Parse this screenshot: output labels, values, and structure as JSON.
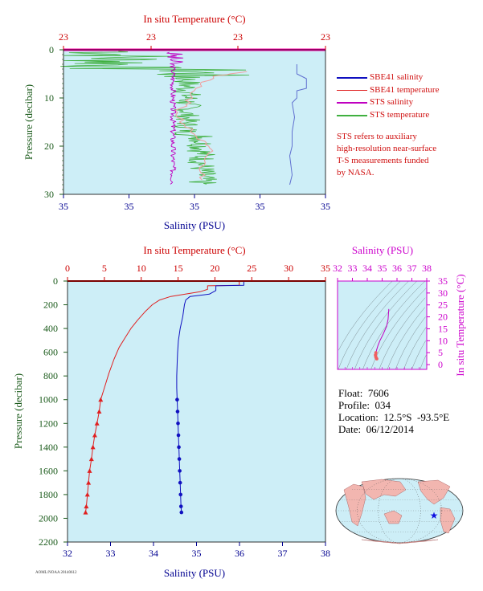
{
  "colors": {
    "plot_bg": "#cdeef7",
    "sbe_salinity": "#1010c0",
    "sbe_temperature": "#e02020",
    "sts_salinity": "#c000c0",
    "sts_temperature": "#40b040",
    "sts_temp_light": "#f0a0a0",
    "sbe_sal_light": "#6070d0",
    "red_axis": "#cc0000",
    "blue_axis": "#000090",
    "green_axis": "#1a5a1a",
    "magenta_axis": "#cc00cc"
  },
  "top_chart": {
    "temp_axis_title": "In situ Temperature (°C)",
    "temp_ticks": [
      "23",
      "23",
      "23",
      "23"
    ],
    "pressure_axis_title": "Pressure (decibar)",
    "pressure_ticks": [
      "0",
      "10",
      "20",
      "30"
    ],
    "sal_axis_title": "Salinity (PSU)",
    "sal_ticks": [
      "35",
      "35",
      "35",
      "35",
      "35"
    ]
  },
  "legend": [
    {
      "label": "SBE41 salinity",
      "color": "#1010c0"
    },
    {
      "label": "SBE41 temperature",
      "color": "#e02020"
    },
    {
      "label": "STS salinity",
      "color": "#c000c0"
    },
    {
      "label": "STS temperature",
      "color": "#40b040"
    }
  ],
  "note": {
    "lines": [
      "STS refers to auxiliary",
      "high-resolution near-surface",
      "T-S measurements funded",
      "by NASA."
    ]
  },
  "main_chart": {
    "temp_axis_title": "In situ Temperature (°C)",
    "temp_ticks": [
      "0",
      "5",
      "10",
      "15",
      "20",
      "25",
      "30",
      "35"
    ],
    "pressure_axis_title": "Pressure (decibar)",
    "pressure_ticks": [
      "0",
      "200",
      "400",
      "600",
      "800",
      "1000",
      "1200",
      "1400",
      "1600",
      "1800",
      "2000",
      "2200"
    ],
    "sal_axis_title": "Salinity (PSU)",
    "sal_ticks": [
      "32",
      "33",
      "34",
      "35",
      "36",
      "37",
      "38"
    ]
  },
  "ts_chart": {
    "sal_axis_title": "Salinity (PSU)",
    "sal_ticks": [
      "32",
      "33",
      "34",
      "35",
      "36",
      "37",
      "38"
    ],
    "temp_axis_title": "In situ Temperature (°C)",
    "temp_ticks": [
      "0",
      "5",
      "10",
      "15",
      "20",
      "25",
      "30",
      "35"
    ]
  },
  "info": {
    "float_label": "Float:",
    "float_value": "7606",
    "profile_label": "Profile:",
    "profile_value": "034",
    "location_label": "Location:",
    "location_value": "12.5°S  -93.5°E",
    "date_label": "Date:",
    "date_value": "06/12/2014"
  },
  "stamp_text": "AOML/NOAA 20140612",
  "chart_data": [
    {
      "type": "line",
      "series": [
        {
          "name": "SBE41 salinity",
          "x_unit": "PSU",
          "y_unit": "decibar",
          "points": [
            [
              35.38,
              3
            ],
            [
              35.38,
              5
            ],
            [
              35.42,
              6
            ],
            [
              35.42,
              8
            ],
            [
              35.38,
              8.5
            ],
            [
              35.38,
              10
            ],
            [
              35.36,
              11
            ],
            [
              35.37,
              14
            ],
            [
              35.36,
              17
            ],
            [
              35.36,
              20
            ],
            [
              35.35,
              22
            ],
            [
              35.36,
              26
            ],
            [
              35.35,
              28
            ]
          ]
        },
        {
          "name": "SBE41 temperature",
          "x_unit": "°C",
          "y_unit": "decibar",
          "points": [
            [
              23.25,
              4.5
            ],
            [
              23.15,
              5.5
            ],
            [
              23.1,
              8
            ],
            [
              23.08,
              11
            ],
            [
              23.05,
              13
            ],
            [
              23.08,
              16
            ],
            [
              23.12,
              19
            ],
            [
              23.14,
              21
            ],
            [
              23.12,
              24
            ],
            [
              23.12,
              27
            ]
          ]
        },
        {
          "name": "STS salinity",
          "x_unit": "PSU",
          "y_unit": "decibar",
          "range": [
            34.7,
            35.0
          ]
        },
        {
          "name": "STS temperature",
          "x_unit": "°C",
          "y_unit": "decibar",
          "range": [
            22.8,
            23.3
          ]
        }
      ],
      "x_range": [
        34.4,
        35.5
      ],
      "y_range": [
        0,
        30
      ],
      "y_reversed": true
    },
    {
      "type": "line",
      "series": [
        {
          "name": "SBE41 temperature",
          "x_unit": "°C",
          "y_unit": "decibar",
          "points": [
            [
              23.3,
              5
            ],
            [
              23.3,
              36
            ],
            [
              19.0,
              40
            ],
            [
              19.0,
              70
            ],
            [
              18.0,
              90
            ],
            [
              16.0,
              110
            ],
            [
              14.0,
              130
            ],
            [
              12.5,
              160
            ],
            [
              11.5,
              200
            ],
            [
              10.5,
              260
            ],
            [
              9.5,
              330
            ],
            [
              8.6,
              400
            ],
            [
              7.8,
              480
            ],
            [
              7.0,
              560
            ],
            [
              6.3,
              660
            ],
            [
              5.6,
              780
            ],
            [
              5.0,
              900
            ],
            [
              4.5,
              1000
            ],
            [
              4.3,
              1100
            ],
            [
              4.0,
              1200
            ],
            [
              3.7,
              1300
            ],
            [
              3.45,
              1400
            ],
            [
              3.25,
              1500
            ],
            [
              3.0,
              1600
            ],
            [
              2.85,
              1700
            ],
            [
              2.7,
              1800
            ],
            [
              2.55,
              1900
            ],
            [
              2.45,
              1950
            ]
          ]
        },
        {
          "name": "SBE41 salinity",
          "x_unit": "PSU",
          "y_unit": "decibar",
          "points": [
            [
              36.1,
              5
            ],
            [
              36.1,
              36
            ],
            [
              35.45,
              40
            ],
            [
              35.45,
              80
            ],
            [
              35.3,
              110
            ],
            [
              34.85,
              130
            ],
            [
              34.75,
              160
            ],
            [
              34.72,
              200
            ],
            [
              34.68,
              300
            ],
            [
              34.62,
              400
            ],
            [
              34.58,
              500
            ],
            [
              34.56,
              600
            ],
            [
              34.55,
              700
            ],
            [
              34.54,
              800
            ],
            [
              34.54,
              900
            ],
            [
              34.55,
              1000
            ],
            [
              34.56,
              1100
            ],
            [
              34.57,
              1200
            ],
            [
              34.58,
              1300
            ],
            [
              34.59,
              1400
            ],
            [
              34.6,
              1500
            ],
            [
              34.61,
              1600
            ],
            [
              34.62,
              1700
            ],
            [
              34.63,
              1800
            ],
            [
              34.64,
              1900
            ],
            [
              34.65,
              1950
            ]
          ]
        }
      ],
      "temp_range": [
        0,
        35
      ],
      "sal_range": [
        32,
        38
      ],
      "y_range": [
        0,
        2200
      ],
      "y_reversed": true
    },
    {
      "type": "scatter",
      "x_unit": "PSU",
      "y_unit": "°C",
      "x_range": [
        32,
        38
      ],
      "y_range": [
        -2,
        35
      ],
      "points": [
        [
          35.45,
          23.3
        ],
        [
          35.4,
          19.0
        ],
        [
          35.3,
          16.0
        ],
        [
          35.05,
          12.5
        ],
        [
          34.85,
          10.0
        ],
        [
          34.72,
          8.0
        ],
        [
          34.62,
          6.0
        ],
        [
          34.58,
          5.0
        ],
        [
          34.55,
          4.0
        ],
        [
          34.57,
          3.3
        ],
        [
          34.6,
          2.8
        ],
        [
          34.64,
          2.4
        ]
      ]
    }
  ]
}
